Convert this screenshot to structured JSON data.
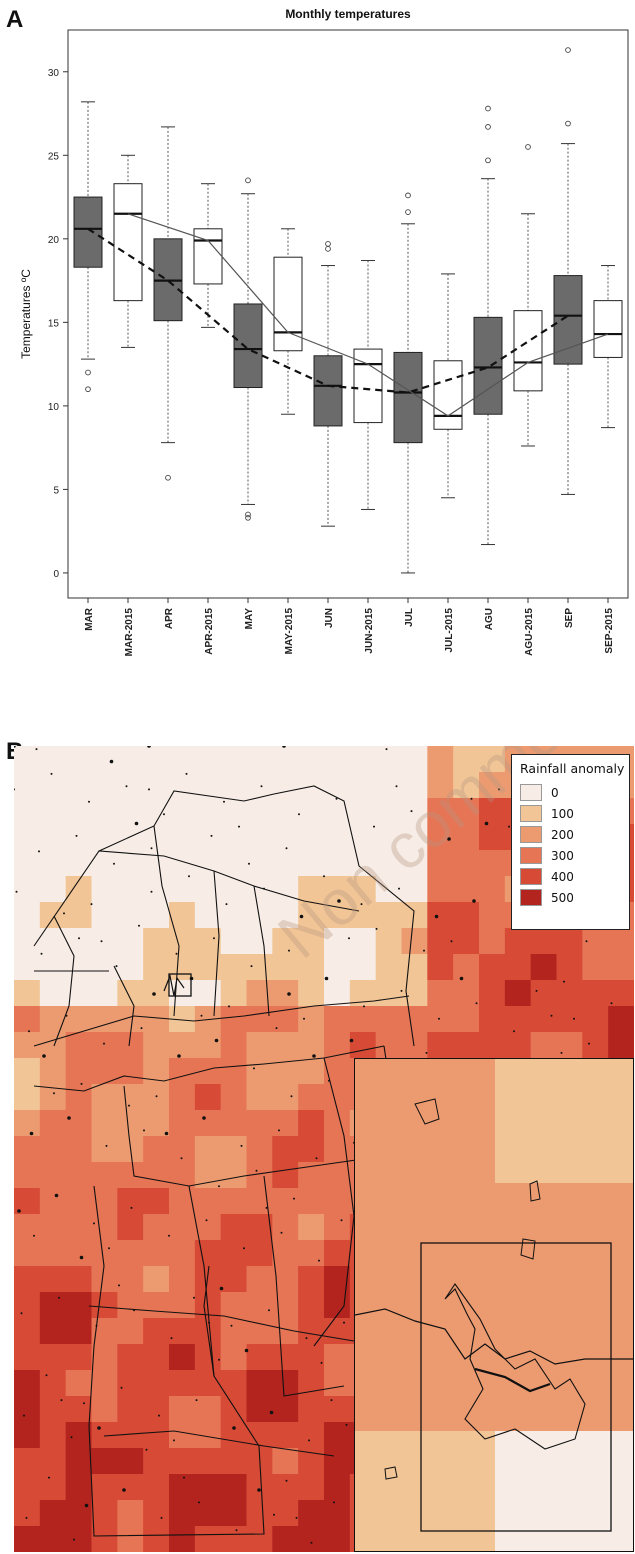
{
  "panels": {
    "a_label": "A",
    "b_label": "B"
  },
  "chart_data": {
    "type": "box",
    "title": "Monthly temperatures",
    "ylabel": "Temperatures ºC",
    "xlabel": "",
    "ylim": [
      -1.5,
      32.5
    ],
    "yticks": [
      0,
      5,
      10,
      15,
      20,
      25,
      30
    ],
    "categories": [
      "MAR",
      "MAR-2015",
      "APR",
      "APR-2015",
      "MAY",
      "MAY-2015",
      "JUN",
      "JUN-2015",
      "JUL",
      "JUL-2015",
      "AGU",
      "AGU-2015",
      "SEP",
      "SEP-2015"
    ],
    "boxes": [
      {
        "category": "MAR",
        "fill": "#6b6b6b",
        "whisker_low": 12.8,
        "q1": 18.3,
        "median": 20.6,
        "q3": 22.5,
        "whisker_high": 28.2,
        "outliers": [
          12.0,
          11.0
        ]
      },
      {
        "category": "MAR-2015",
        "fill": "#ffffff",
        "whisker_low": 13.5,
        "q1": 16.3,
        "median": 21.5,
        "q3": 23.3,
        "whisker_high": 25.0,
        "outliers": []
      },
      {
        "category": "APR",
        "fill": "#6b6b6b",
        "whisker_low": 7.8,
        "q1": 15.1,
        "median": 17.5,
        "q3": 20.0,
        "whisker_high": 26.7,
        "outliers": [
          5.7
        ]
      },
      {
        "category": "APR-2015",
        "fill": "#ffffff",
        "whisker_low": 14.7,
        "q1": 17.3,
        "median": 19.9,
        "q3": 20.6,
        "whisker_high": 23.3,
        "outliers": []
      },
      {
        "category": "MAY",
        "fill": "#6b6b6b",
        "whisker_low": 4.1,
        "q1": 11.1,
        "median": 13.4,
        "q3": 16.1,
        "whisker_high": 22.7,
        "outliers": [
          3.3,
          3.5,
          23.5
        ]
      },
      {
        "category": "MAY-2015",
        "fill": "#ffffff",
        "whisker_low": 9.5,
        "q1": 13.3,
        "median": 14.4,
        "q3": 18.9,
        "whisker_high": 20.6,
        "outliers": []
      },
      {
        "category": "JUN",
        "fill": "#6b6b6b",
        "whisker_low": 2.8,
        "q1": 8.8,
        "median": 11.2,
        "q3": 13.0,
        "whisker_high": 18.4,
        "outliers": [
          19.4,
          19.7
        ]
      },
      {
        "category": "JUN-2015",
        "fill": "#ffffff",
        "whisker_low": 3.8,
        "q1": 9.0,
        "median": 12.5,
        "q3": 13.4,
        "whisker_high": 18.7,
        "outliers": []
      },
      {
        "category": "JUL",
        "fill": "#6b6b6b",
        "whisker_low": 0.0,
        "q1": 7.8,
        "median": 10.8,
        "q3": 13.2,
        "whisker_high": 20.9,
        "outliers": [
          21.6,
          22.6
        ]
      },
      {
        "category": "JUL-2015",
        "fill": "#ffffff",
        "whisker_low": 4.5,
        "q1": 8.6,
        "median": 9.4,
        "q3": 12.7,
        "whisker_high": 17.9,
        "outliers": []
      },
      {
        "category": "AGU",
        "fill": "#6b6b6b",
        "whisker_low": 1.7,
        "q1": 9.5,
        "median": 12.3,
        "q3": 15.3,
        "whisker_high": 23.6,
        "outliers": [
          24.7,
          26.7,
          27.8
        ]
      },
      {
        "category": "AGU-2015",
        "fill": "#ffffff",
        "whisker_low": 7.6,
        "q1": 10.9,
        "median": 12.6,
        "q3": 15.7,
        "whisker_high": 21.5,
        "outliers": [
          25.5
        ]
      },
      {
        "category": "SEP",
        "fill": "#6b6b6b",
        "whisker_low": 4.7,
        "q1": 12.5,
        "median": 15.4,
        "q3": 17.8,
        "whisker_high": 25.7,
        "outliers": [
          26.9,
          31.3
        ]
      },
      {
        "category": "SEP-2015",
        "fill": "#ffffff",
        "whisker_low": 8.7,
        "q1": 12.9,
        "median": 14.3,
        "q3": 16.3,
        "whisker_high": 18.4,
        "outliers": []
      }
    ],
    "lines": [
      {
        "style": "dashed",
        "points": [
          [
            "MAR",
            20.6
          ],
          [
            "APR",
            17.5
          ],
          [
            "MAY",
            13.4
          ],
          [
            "JUN",
            11.2
          ],
          [
            "JUL",
            10.8
          ],
          [
            "AGU",
            12.3
          ],
          [
            "SEP",
            15.4
          ]
        ]
      },
      {
        "style": "solid",
        "points": [
          [
            "MAR-2015",
            21.5
          ],
          [
            "APR-2015",
            19.9
          ],
          [
            "MAY-2015",
            14.4
          ],
          [
            "JUN-2015",
            12.5
          ],
          [
            "JUL-2015",
            9.4
          ],
          [
            "AGU-2015",
            12.6
          ],
          [
            "SEP-2015",
            14.3
          ]
        ]
      }
    ]
  },
  "map": {
    "legend_title": "Rainfall anomaly",
    "legend": [
      {
        "label": "0",
        "color": "#f7ede6"
      },
      {
        "label": "100",
        "color": "#f1c596"
      },
      {
        "label": "200",
        "color": "#ec9b71"
      },
      {
        "label": "300",
        "color": "#e67555"
      },
      {
        "label": "400",
        "color": "#d64a36"
      },
      {
        "label": "500",
        "color": "#b3241f"
      }
    ],
    "watermark": "Non commercial"
  }
}
